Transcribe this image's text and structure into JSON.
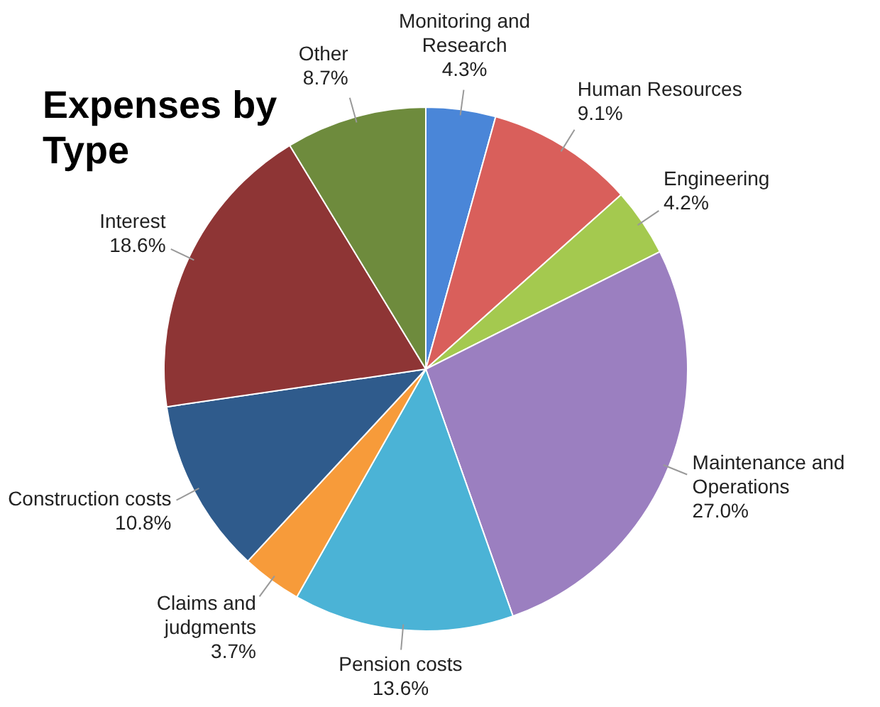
{
  "chart_data": {
    "type": "pie",
    "title": "Expenses by Type",
    "categories": [
      "Monitoring and Research",
      "Human Resources",
      "Engineering",
      "Maintenance and Operations",
      "Pension costs",
      "Claims and judgments",
      "Construction costs",
      "Interest",
      "Other"
    ],
    "values": [
      4.3,
      9.1,
      4.2,
      27.0,
      13.6,
      3.7,
      10.8,
      18.6,
      8.7
    ],
    "value_labels": [
      "4.3%",
      "9.1%",
      "4.2%",
      "27.0%",
      "13.6%",
      "3.7%",
      "10.8%",
      "18.6%",
      "8.7%"
    ],
    "colors": [
      "#4a86d8",
      "#d95f5b",
      "#a4c94f",
      "#9b7fc0",
      "#4bb3d6",
      "#f79b3a",
      "#2f5b8c",
      "#8e3535",
      "#6e8b3d"
    ],
    "legend": false
  }
}
